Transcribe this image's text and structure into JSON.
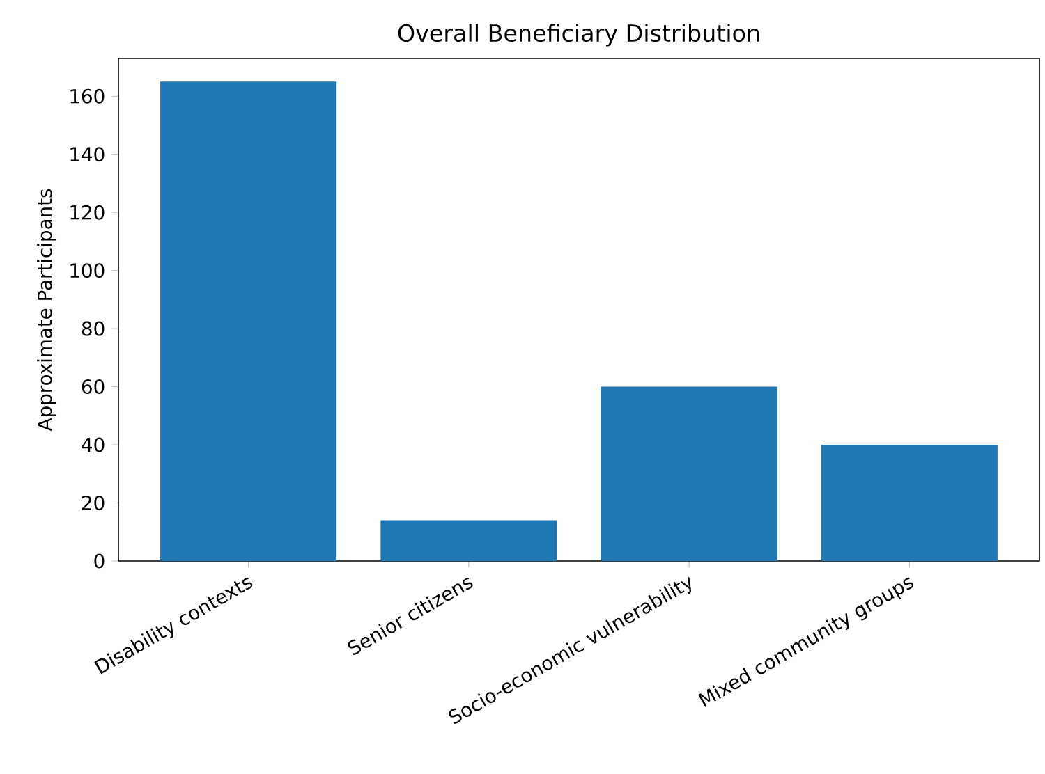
{
  "chart_data": {
    "type": "bar",
    "title": "Overall Beneficiary Distribution",
    "ylabel": "Approximate Participants",
    "categories": [
      "Disability contexts",
      "Senior citizens",
      "Socio-economic vulnerability",
      "Mixed community groups"
    ],
    "values": [
      165,
      14,
      60,
      40
    ],
    "color": "#1f77b4",
    "ylim": [
      0,
      173
    ],
    "yticks": [
      0,
      20,
      40,
      60,
      80,
      100,
      120,
      140,
      160
    ],
    "grid": false
  }
}
